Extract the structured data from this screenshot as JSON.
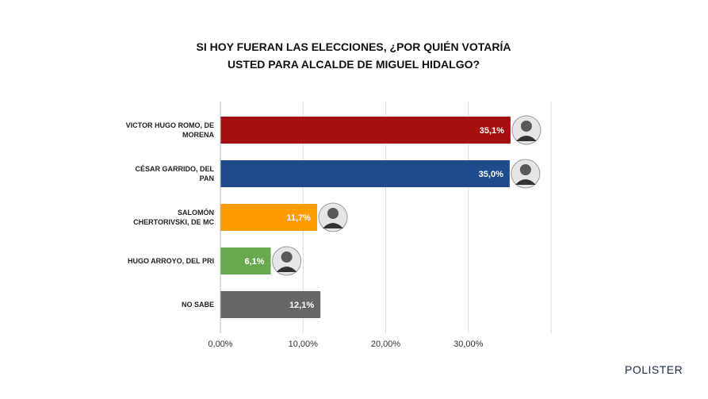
{
  "chart_data": {
    "type": "hbar",
    "title": "SI HOY FUERAN LAS ELECCIONES, ¿POR QUIÉN VOTARÍA USTED PARA ALCALDE DE MIGUEL HIDALGO?",
    "categories": [
      "VICTOR HUGO ROMO, DE MORENA",
      "CÉSAR GARRIDO, DEL PAN",
      "SALOMÓN CHERTORIVSKI, DE MC",
      "HUGO ARROYO, DEL PRI",
      "NO SABE"
    ],
    "values": [
      35.1,
      35.0,
      11.7,
      6.1,
      12.1
    ],
    "value_labels": [
      "35,1%",
      "35,0%",
      "11,7%",
      "6,1%",
      "12,1%"
    ],
    "colors": [
      "#a50f0f",
      "#1f4a8c",
      "#ff9d00",
      "#6aa84f",
      "#666666"
    ],
    "xlim": [
      0,
      40
    ],
    "xticks": [
      {
        "value": 0,
        "label": "0,00%"
      },
      {
        "value": 10,
        "label": "10,00%"
      },
      {
        "value": 20,
        "label": "20,00%"
      },
      {
        "value": 30,
        "label": "30,00%"
      }
    ],
    "grid": true,
    "logo": "POLISTER"
  }
}
